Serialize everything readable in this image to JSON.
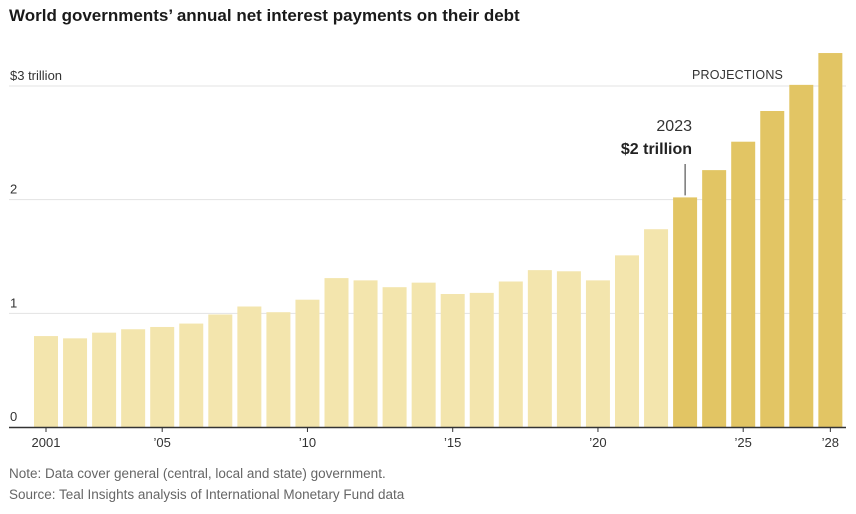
{
  "chart_data": {
    "type": "bar",
    "title": "World governments’ annual net interest payments on their debt",
    "years": [
      2001,
      2002,
      2003,
      2004,
      2005,
      2006,
      2007,
      2008,
      2009,
      2010,
      2011,
      2012,
      2013,
      2014,
      2015,
      2016,
      2017,
      2018,
      2019,
      2020,
      2021,
      2022,
      2023,
      2024,
      2025,
      2026,
      2027,
      2028
    ],
    "values": [
      0.8,
      0.78,
      0.83,
      0.86,
      0.88,
      0.91,
      0.99,
      1.06,
      1.01,
      1.12,
      1.31,
      1.29,
      1.23,
      1.27,
      1.17,
      1.18,
      1.28,
      1.38,
      1.37,
      1.29,
      1.51,
      1.74,
      2.02,
      2.26,
      2.51,
      2.78,
      3.01,
      3.29
    ],
    "projection_start_year": 2023,
    "x_tick_labels": [
      {
        "year": 2001,
        "label": "2001"
      },
      {
        "year": 2005,
        "label": "’05"
      },
      {
        "year": 2010,
        "label": "’10"
      },
      {
        "year": 2015,
        "label": "’15"
      },
      {
        "year": 2020,
        "label": "’20"
      },
      {
        "year": 2025,
        "label": "’25"
      },
      {
        "year": 2028,
        "label": "’28"
      }
    ],
    "y_ticks": [
      {
        "value": 0,
        "label": "0"
      },
      {
        "value": 1,
        "label": "1"
      },
      {
        "value": 2,
        "label": "2"
      },
      {
        "value": 3,
        "label": "$3 trillion"
      }
    ],
    "ylim": [
      0,
      3.3
    ],
    "grid": true,
    "projections_label": "PROJECTIONS",
    "annotation": {
      "year": 2023,
      "year_label": "2023",
      "value_label": "$2 trillion"
    },
    "colors": {
      "historical": "#f3e5ad",
      "projection": "#e2c564",
      "grid": "#e3e3e3",
      "baseline": "#333333"
    }
  },
  "footer": {
    "note": "Note: Data cover general (central, local and state) government.",
    "source": "Source: Teal Insights analysis of International Monetary Fund data"
  }
}
